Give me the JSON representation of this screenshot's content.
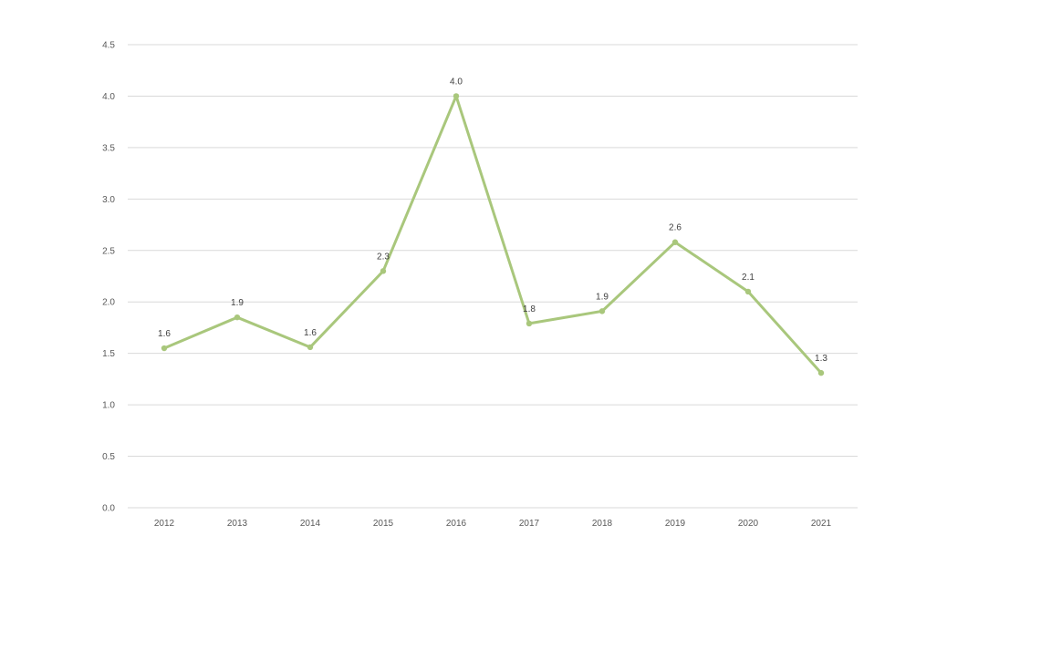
{
  "chart_data": {
    "type": "line",
    "title": "",
    "xlabel": "",
    "ylabel": "",
    "categories": [
      "2012",
      "2013",
      "2014",
      "2015",
      "2016",
      "2017",
      "2018",
      "2019",
      "2020",
      "2021"
    ],
    "series": [
      {
        "values": [
          1.55,
          1.85,
          1.56,
          2.3,
          4.0,
          1.79,
          1.91,
          2.58,
          2.1,
          1.31
        ],
        "labels": [
          "1.6",
          "1.9",
          "1.6",
          "2.3",
          "4.0",
          "1.8",
          "1.9",
          "2.6",
          "2.1",
          "1.3"
        ],
        "color": "#a9c77c"
      }
    ],
    "ylim": [
      0,
      4.5
    ],
    "yticks": [
      "0.0",
      "0.5",
      "1.0",
      "1.5",
      "2.0",
      "2.5",
      "3.0",
      "3.5",
      "4.0",
      "4.5"
    ],
    "grid": true,
    "legend": "none"
  }
}
